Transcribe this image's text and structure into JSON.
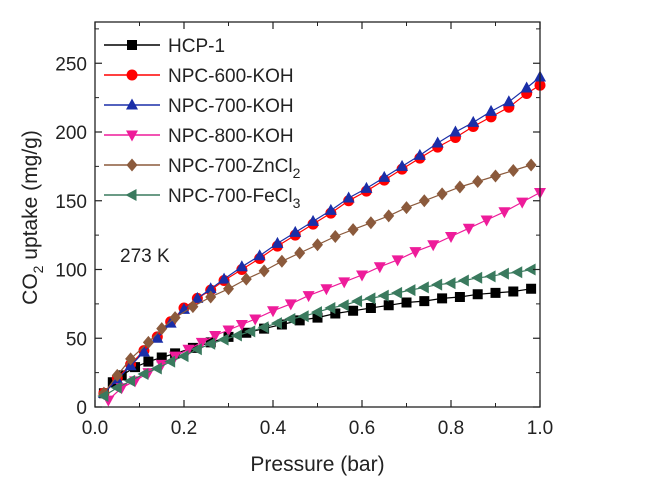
{
  "chart_data": {
    "type": "line",
    "xlabel": "Pressure (bar)",
    "ylabel": "CO₂ uptake (mg/g)",
    "ylabel_parts": [
      "CO",
      "2",
      " uptake (mg/g)"
    ],
    "xlim": [
      0.0,
      1.0
    ],
    "ylim": [
      0,
      280
    ],
    "xticks": [
      0.0,
      0.2,
      0.4,
      0.6,
      0.8,
      1.0
    ],
    "xtick_labels": [
      "0.0",
      "0.2",
      "0.4",
      "0.6",
      "0.8",
      "1.0"
    ],
    "yticks": [
      0,
      50,
      100,
      150,
      200,
      250
    ],
    "ytick_labels": [
      "0",
      "50",
      "100",
      "150",
      "200",
      "250"
    ],
    "grid": false,
    "legend_position": "top-left",
    "annotation": "273 K",
    "series": [
      {
        "name": "HCP-1",
        "name_parts": [
          "HCP-1"
        ],
        "color": "#000000",
        "marker": "square",
        "x": [
          0.02,
          0.04,
          0.06,
          0.09,
          0.12,
          0.15,
          0.18,
          0.22,
          0.26,
          0.3,
          0.34,
          0.38,
          0.42,
          0.46,
          0.5,
          0.54,
          0.58,
          0.62,
          0.66,
          0.7,
          0.74,
          0.78,
          0.82,
          0.86,
          0.9,
          0.94,
          0.98
        ],
        "y": [
          10,
          18,
          23,
          29,
          33,
          36,
          39,
          43,
          47,
          51,
          54,
          57,
          60,
          63,
          65,
          68,
          70,
          72,
          74,
          76,
          77,
          79,
          80,
          82,
          83,
          84,
          86
        ]
      },
      {
        "name": "NPC-600-KOH",
        "name_parts": [
          "NPC-600-KOH"
        ],
        "color": "#ff0000",
        "marker": "circle",
        "x": [
          0.02,
          0.05,
          0.08,
          0.11,
          0.14,
          0.17,
          0.2,
          0.23,
          0.26,
          0.29,
          0.33,
          0.37,
          0.41,
          0.45,
          0.49,
          0.53,
          0.57,
          0.61,
          0.65,
          0.69,
          0.73,
          0.77,
          0.81,
          0.85,
          0.89,
          0.93,
          0.97,
          1.0
        ],
        "y": [
          10,
          21,
          31,
          41,
          51,
          62,
          72,
          79,
          85,
          92,
          100,
          108,
          117,
          125,
          133,
          141,
          150,
          157,
          165,
          173,
          181,
          189,
          196,
          204,
          211,
          218,
          228,
          234
        ]
      },
      {
        "name": "NPC-700-KOH",
        "name_parts": [
          "NPC-700-KOH"
        ],
        "color": "#1a2ea8",
        "marker": "triangle-up",
        "x": [
          0.02,
          0.05,
          0.08,
          0.11,
          0.14,
          0.17,
          0.2,
          0.23,
          0.26,
          0.29,
          0.33,
          0.37,
          0.41,
          0.45,
          0.49,
          0.53,
          0.57,
          0.61,
          0.65,
          0.69,
          0.73,
          0.77,
          0.81,
          0.85,
          0.89,
          0.93,
          0.97,
          1.0
        ],
        "y": [
          10,
          20,
          30,
          40,
          50,
          61,
          71,
          79,
          86,
          93,
          102,
          110,
          119,
          127,
          135,
          143,
          152,
          159,
          167,
          175,
          183,
          192,
          200,
          207,
          215,
          222,
          232,
          240
        ]
      },
      {
        "name": "NPC-800-KOH",
        "name_parts": [
          "NPC-800-KOH"
        ],
        "color": "#ee1c9a",
        "marker": "triangle-down",
        "x": [
          0.03,
          0.06,
          0.09,
          0.12,
          0.15,
          0.18,
          0.21,
          0.24,
          0.27,
          0.3,
          0.33,
          0.36,
          0.4,
          0.44,
          0.48,
          0.52,
          0.56,
          0.6,
          0.64,
          0.68,
          0.72,
          0.76,
          0.8,
          0.84,
          0.88,
          0.92,
          0.96,
          1.0
        ],
        "y": [
          5,
          14,
          19,
          25,
          31,
          37,
          42,
          47,
          52,
          56,
          60,
          64,
          70,
          75,
          81,
          86,
          91,
          96,
          102,
          107,
          113,
          118,
          124,
          130,
          136,
          142,
          149,
          156
        ]
      },
      {
        "name": "NPC-700-ZnCl2",
        "name_parts": [
          "NPC-700-ZnCl",
          "2"
        ],
        "color": "#8b5a3c",
        "marker": "diamond",
        "x": [
          0.02,
          0.05,
          0.08,
          0.12,
          0.15,
          0.18,
          0.22,
          0.26,
          0.3,
          0.34,
          0.38,
          0.42,
          0.46,
          0.5,
          0.54,
          0.58,
          0.62,
          0.66,
          0.7,
          0.74,
          0.78,
          0.82,
          0.86,
          0.9,
          0.94,
          0.98
        ],
        "y": [
          10,
          23,
          35,
          47,
          57,
          65,
          73,
          80,
          86,
          93,
          99,
          106,
          112,
          118,
          124,
          129,
          134,
          139,
          145,
          150,
          155,
          160,
          164,
          168,
          172,
          176
        ]
      },
      {
        "name": "NPC-700-FeCl3",
        "name_parts": [
          "NPC-700-FeCl",
          "3"
        ],
        "color": "#3a7a5e",
        "marker": "triangle-left",
        "x": [
          0.02,
          0.05,
          0.08,
          0.11,
          0.14,
          0.17,
          0.2,
          0.23,
          0.26,
          0.29,
          0.32,
          0.35,
          0.38,
          0.41,
          0.44,
          0.47,
          0.5,
          0.53,
          0.56,
          0.59,
          0.62,
          0.65,
          0.68,
          0.71,
          0.74,
          0.77,
          0.8,
          0.83,
          0.86,
          0.89,
          0.92,
          0.95,
          0.98
        ],
        "y": [
          8,
          14,
          19,
          24,
          28,
          33,
          37,
          42,
          46,
          49,
          52,
          55,
          58,
          61,
          64,
          66,
          69,
          72,
          74,
          77,
          79,
          81,
          83,
          85,
          87,
          89,
          90,
          92,
          94,
          95,
          97,
          98,
          100
        ]
      }
    ]
  }
}
